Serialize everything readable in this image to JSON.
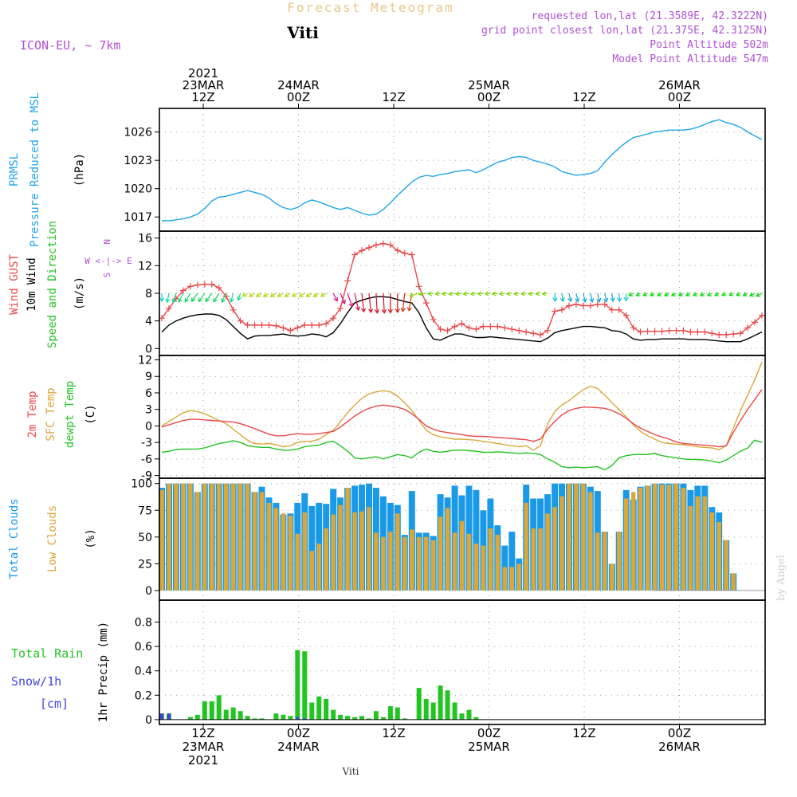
{
  "header": {
    "title": "Forecast Meteogram",
    "location": "Viti",
    "model": "ICON-EU, ~ 7km",
    "requested": "requested lon,lat (21.3589E, 42.3222N)",
    "gridpoint": "grid point closest lon,lat (21.375E, 42.3125N)",
    "point_alt": "Point Altitude 502m",
    "model_alt": "Model Point Altitude 547m",
    "credit": "by Angel",
    "footer": "Viti"
  },
  "colors": {
    "pressure": "#1fa5e6",
    "gust": "#e84848",
    "wind10m": "#000000",
    "t2m": "#e84848",
    "sfc": "#d9a73a",
    "dewpt": "#22c422",
    "total_clouds": "#1a9ae6",
    "low_clouds": "#d9a73a",
    "rain": "#22c422",
    "snow": "#4444e0",
    "meta": "#b050d0"
  },
  "time_axis": {
    "hours_from_23MAR00Z": [
      12,
      24,
      36,
      48,
      60,
      72
    ],
    "top": [
      {
        "h": 12,
        "lines": [
          "2021",
          "23MAR",
          "12Z"
        ]
      },
      {
        "h": 24,
        "lines": [
          "24MAR",
          "00Z"
        ]
      },
      {
        "h": 36,
        "lines": [
          "12Z"
        ]
      },
      {
        "h": 48,
        "lines": [
          "25MAR",
          "00Z"
        ]
      },
      {
        "h": 60,
        "lines": [
          "12Z"
        ]
      },
      {
        "h": 72,
        "lines": [
          "26MAR",
          "00Z"
        ]
      }
    ],
    "bottom": [
      {
        "h": 12,
        "lines": [
          "12Z",
          "23MAR",
          "2021"
        ]
      },
      {
        "h": 24,
        "lines": [
          "00Z",
          "24MAR"
        ]
      },
      {
        "h": 36,
        "lines": [
          "12Z"
        ]
      },
      {
        "h": 48,
        "lines": [
          "00Z",
          "25MAR"
        ]
      },
      {
        "h": 60,
        "lines": [
          "12Z"
        ]
      },
      {
        "h": 72,
        "lines": [
          "00Z",
          "26MAR"
        ]
      }
    ]
  },
  "chart_data": [
    {
      "id": "pressure",
      "type": "line",
      "ylabels": [
        "PRMSL",
        "Pressure Reduced to MSL",
        "(hPa)"
      ],
      "ylim": [
        1015.5,
        1028.5
      ],
      "yticks": [
        1017,
        1020,
        1023,
        1026
      ],
      "series": [
        {
          "key": "pressure",
          "values": [
            1016.6,
            1016.6,
            1016.7,
            1016.8,
            1017.0,
            1017.3,
            1017.9,
            1018.7,
            1019.1,
            1019.2,
            1019.4,
            1019.6,
            1019.8,
            1019.6,
            1019.4,
            1019.0,
            1018.4,
            1018.0,
            1017.8,
            1018.0,
            1018.5,
            1018.8,
            1018.6,
            1018.3,
            1018.0,
            1017.8,
            1018.0,
            1017.7,
            1017.4,
            1017.2,
            1017.3,
            1017.8,
            1018.5,
            1019.3,
            1020.0,
            1020.7,
            1021.2,
            1021.4,
            1021.3,
            1021.5,
            1021.6,
            1021.8,
            1021.9,
            1022.0,
            1021.7,
            1022.0,
            1022.4,
            1022.8,
            1023.0,
            1023.3,
            1023.4,
            1023.3,
            1023.0,
            1022.8,
            1022.6,
            1022.3,
            1021.8,
            1021.6,
            1021.4,
            1021.5,
            1021.6,
            1021.9,
            1022.8,
            1023.6,
            1024.3,
            1024.9,
            1025.4,
            1025.6,
            1025.8,
            1026.0,
            1026.1,
            1026.2,
            1026.2,
            1026.2,
            1026.3,
            1026.5,
            1026.8,
            1027.1,
            1027.3,
            1027.0,
            1026.8,
            1026.5,
            1026.0,
            1025.6,
            1025.2
          ]
        }
      ]
    },
    {
      "id": "wind",
      "type": "line",
      "ylabels": [
        "Wind GUST",
        "10m Wind",
        "Speed and Direction",
        "(m/s)"
      ],
      "ylim": [
        -1,
        17
      ],
      "yticks": [
        0,
        4,
        8,
        12,
        16
      ],
      "compass": [
        "N",
        "W <-|-> E",
        "S"
      ],
      "series": [
        {
          "key": "gust",
          "values": [
            4.4,
            5.8,
            7.2,
            8.4,
            9.0,
            9.2,
            9.3,
            9.3,
            8.8,
            7.6,
            5.6,
            4.0,
            3.4,
            3.4,
            3.4,
            3.4,
            3.3,
            3.0,
            2.6,
            3.0,
            3.4,
            3.4,
            3.4,
            3.6,
            4.4,
            5.8,
            9.8,
            13.6,
            14.2,
            14.6,
            15.0,
            15.2,
            15.0,
            14.2,
            13.8,
            13.6,
            9.0,
            6.6,
            4.2,
            2.8,
            2.6,
            3.2,
            3.6,
            3.0,
            2.8,
            3.2,
            3.2,
            3.2,
            3.0,
            2.8,
            2.6,
            2.4,
            2.2,
            2.0,
            2.6,
            5.4,
            5.6,
            6.2,
            6.4,
            6.2,
            6.2,
            6.4,
            6.4,
            5.6,
            5.6,
            4.8,
            3.0,
            2.4,
            2.5,
            2.5,
            2.5,
            2.6,
            2.6,
            2.6,
            2.4,
            2.4,
            2.4,
            2.2,
            2.0,
            2.0,
            2.1,
            2.2,
            3.0,
            3.8,
            4.8
          ]
        },
        {
          "key": "wind10m",
          "values": [
            2.4,
            3.4,
            4.0,
            4.4,
            4.7,
            4.9,
            5.0,
            5.0,
            4.8,
            4.2,
            3.2,
            2.2,
            1.4,
            1.8,
            1.9,
            1.9,
            2.0,
            2.1,
            1.9,
            1.8,
            1.9,
            2.1,
            2.0,
            1.7,
            2.3,
            3.6,
            5.2,
            6.6,
            7.0,
            7.3,
            7.5,
            7.5,
            7.4,
            7.1,
            6.8,
            6.6,
            5.2,
            3.0,
            1.4,
            1.2,
            1.7,
            2.1,
            2.1,
            1.8,
            1.6,
            1.6,
            1.7,
            1.6,
            1.5,
            1.4,
            1.3,
            1.2,
            1.1,
            1.0,
            1.5,
            2.3,
            2.6,
            2.8,
            3.0,
            3.2,
            3.2,
            3.1,
            3.0,
            2.6,
            2.5,
            2.1,
            1.4,
            1.2,
            1.3,
            1.3,
            1.4,
            1.4,
            1.4,
            1.4,
            1.3,
            1.3,
            1.3,
            1.2,
            1.1,
            1.0,
            1.0,
            1.0,
            1.4,
            1.9,
            2.4
          ]
        }
      ]
    },
    {
      "id": "temperature",
      "type": "line",
      "ylabels": [
        "2m Temp",
        "SFC Temp",
        "dewpt Temp",
        "(C)"
      ],
      "ylim": [
        -9.5,
        12.8
      ],
      "yticks": [
        -9,
        -6,
        -3,
        0,
        3,
        6,
        9,
        12
      ],
      "series": [
        {
          "key": "t2m",
          "values": [
            -0.2,
            0.2,
            0.6,
            1.0,
            1.2,
            1.2,
            1.1,
            1.0,
            0.9,
            0.8,
            0.7,
            0.4,
            0.0,
            -0.5,
            -1.0,
            -1.5,
            -1.8,
            -1.8,
            -1.6,
            -1.4,
            -1.5,
            -1.5,
            -1.4,
            -1.2,
            -1.0,
            -0.2,
            0.8,
            1.8,
            2.6,
            3.2,
            3.6,
            3.8,
            3.6,
            3.4,
            3.0,
            2.2,
            1.2,
            0.0,
            -0.6,
            -1.0,
            -1.2,
            -1.4,
            -1.6,
            -1.8,
            -1.9,
            -1.9,
            -2.0,
            -2.1,
            -2.2,
            -2.3,
            -2.4,
            -2.5,
            -2.8,
            -2.4,
            -0.6,
            0.8,
            2.0,
            2.8,
            3.2,
            3.4,
            3.4,
            3.3,
            3.2,
            2.8,
            2.2,
            1.4,
            0.4,
            -0.4,
            -1.0,
            -1.6,
            -2.0,
            -2.4,
            -2.9,
            -3.2,
            -3.3,
            -3.4,
            -3.5,
            -3.6,
            -3.8,
            -3.6,
            -1.2,
            1.0,
            3.0,
            4.8,
            6.6
          ]
        },
        {
          "key": "sfc",
          "values": [
            0.0,
            0.8,
            1.6,
            2.4,
            2.8,
            2.6,
            2.2,
            1.6,
            1.0,
            0.4,
            -0.6,
            -1.6,
            -2.6,
            -3.2,
            -3.3,
            -3.2,
            -3.4,
            -3.8,
            -3.6,
            -3.0,
            -2.8,
            -2.8,
            -2.4,
            -1.6,
            -0.8,
            0.8,
            2.4,
            3.8,
            5.0,
            5.8,
            6.2,
            6.4,
            6.2,
            5.4,
            4.2,
            2.8,
            1.0,
            -0.8,
            -1.6,
            -2.0,
            -2.2,
            -2.4,
            -2.4,
            -2.5,
            -2.6,
            -2.8,
            -3.0,
            -3.2,
            -3.4,
            -3.6,
            -3.8,
            -3.6,
            -4.4,
            -3.6,
            0.4,
            2.6,
            3.8,
            4.6,
            5.6,
            6.6,
            7.2,
            6.8,
            5.6,
            4.2,
            3.0,
            1.6,
            0.2,
            -1.0,
            -1.8,
            -2.4,
            -3.0,
            -3.2,
            -3.3,
            -3.4,
            -3.6,
            -3.8,
            -3.9,
            -4.0,
            -4.3,
            -3.6,
            -0.4,
            2.8,
            5.6,
            8.4,
            11.6
          ]
        },
        {
          "key": "dewpt",
          "values": [
            -4.8,
            -4.6,
            -4.3,
            -4.2,
            -4.2,
            -4.2,
            -4.0,
            -3.6,
            -3.2,
            -3.0,
            -2.7,
            -3.0,
            -3.6,
            -3.8,
            -3.9,
            -3.9,
            -4.2,
            -4.4,
            -4.4,
            -4.2,
            -3.8,
            -3.6,
            -3.5,
            -3.0,
            -2.8,
            -3.6,
            -4.6,
            -5.8,
            -6.0,
            -5.8,
            -5.6,
            -6.0,
            -5.6,
            -5.2,
            -5.4,
            -5.8,
            -4.8,
            -4.2,
            -4.6,
            -4.8,
            -4.6,
            -4.4,
            -4.4,
            -4.5,
            -4.6,
            -4.8,
            -4.8,
            -4.7,
            -4.8,
            -4.9,
            -5.0,
            -4.9,
            -5.0,
            -5.2,
            -6.0,
            -6.6,
            -7.4,
            -7.6,
            -7.5,
            -7.6,
            -7.5,
            -7.4,
            -8.0,
            -7.2,
            -5.8,
            -5.4,
            -5.2,
            -5.2,
            -5.2,
            -5.0,
            -5.4,
            -5.6,
            -5.8,
            -6.0,
            -6.1,
            -6.1,
            -6.2,
            -6.4,
            -6.7,
            -6.2,
            -5.4,
            -4.6,
            -4.0,
            -2.6,
            -3.0
          ]
        }
      ]
    },
    {
      "id": "clouds",
      "type": "bar",
      "ylabels": [
        "Total Clouds",
        "Low Clouds",
        "(%)"
      ],
      "ylim": [
        -9,
        105
      ],
      "yticks": [
        0,
        25,
        50,
        75,
        100
      ],
      "series": [
        {
          "key": "total_clouds",
          "values": [
            96,
            100,
            100,
            100,
            100,
            92,
            100,
            100,
            100,
            100,
            100,
            100,
            100,
            92,
            97,
            87,
            82,
            71,
            72,
            82,
            91,
            79,
            82,
            81,
            95,
            87,
            96,
            98,
            99,
            100,
            96,
            88,
            82,
            80,
            52,
            93,
            54,
            54,
            51,
            90,
            87,
            98,
            89,
            98,
            94,
            75,
            86,
            61,
            42,
            55,
            30,
            99,
            86,
            86,
            90,
            100,
            100,
            100,
            100,
            100,
            97,
            93,
            55,
            25,
            55,
            94,
            85,
            97,
            98,
            100,
            100,
            100,
            100,
            100,
            94,
            98,
            98,
            78,
            73,
            47,
            16,
            0,
            0,
            0,
            0
          ]
        },
        {
          "key": "low_clouds",
          "values": [
            94,
            100,
            100,
            100,
            100,
            92,
            100,
            100,
            100,
            100,
            100,
            100,
            100,
            92,
            92,
            82,
            77,
            72,
            70,
            53,
            73,
            37,
            44,
            58,
            71,
            80,
            96,
            73,
            74,
            78,
            54,
            50,
            55,
            72,
            50,
            57,
            50,
            50,
            47,
            69,
            77,
            54,
            65,
            53,
            44,
            42,
            58,
            52,
            22,
            22,
            25,
            82,
            58,
            58,
            72,
            78,
            88,
            100,
            100,
            100,
            92,
            54,
            55,
            25,
            55,
            86,
            92,
            96,
            98,
            100,
            99,
            99,
            100,
            96,
            79,
            88,
            88,
            73,
            64,
            47,
            16,
            0,
            0,
            0,
            0
          ]
        }
      ]
    },
    {
      "id": "precip",
      "type": "bar",
      "ylabels": [
        "Total  Rain",
        "Snow/1h",
        "[cm]",
        "1hr Precip (mm)"
      ],
      "ylim": [
        -0.04,
        0.98
      ],
      "yticks": [
        0,
        0.2,
        0.4,
        0.6,
        0.8
      ],
      "yticklabels": [
        "0",
        "0.2",
        "0.4",
        "0.6",
        "0.8"
      ],
      "series": [
        {
          "key": "rain",
          "values": [
            0.05,
            0.05,
            0,
            0,
            0.02,
            0.04,
            0.15,
            0.15,
            0.2,
            0.08,
            0.1,
            0.07,
            0.03,
            0.01,
            0.01,
            0,
            0.05,
            0.04,
            0.03,
            0.57,
            0.56,
            0.14,
            0.19,
            0.17,
            0.08,
            0.04,
            0.03,
            0.02,
            0.03,
            0.01,
            0.07,
            0.02,
            0.11,
            0.1,
            0.01,
            0,
            0.26,
            0.17,
            0.14,
            0.28,
            0.24,
            0.14,
            0.05,
            0.08,
            0.02,
            0,
            0,
            0,
            0,
            0,
            0,
            0,
            0,
            0,
            0,
            0,
            0,
            0,
            0,
            0,
            0,
            0,
            0,
            0,
            0,
            0,
            0,
            0,
            0,
            0,
            0,
            0,
            0,
            0,
            0,
            0,
            0,
            0,
            0,
            0,
            0,
            0,
            0,
            0,
            0
          ]
        },
        {
          "key": "snow",
          "values": [
            0.05,
            0.05,
            0,
            0,
            0,
            0,
            0,
            0,
            0,
            0,
            0,
            0,
            0,
            0,
            0,
            0,
            0,
            0,
            0,
            0.02,
            0.01,
            0,
            0,
            0,
            0,
            0,
            0,
            0,
            0,
            0,
            0,
            0,
            0,
            0,
            0,
            0,
            0,
            0,
            0,
            0,
            0,
            0,
            0,
            0,
            0,
            0,
            0,
            0,
            0,
            0,
            0,
            0,
            0,
            0,
            0,
            0,
            0,
            0,
            0,
            0,
            0,
            0,
            0,
            0,
            0,
            0,
            0,
            0,
            0,
            0,
            0,
            0,
            0,
            0,
            0,
            0,
            0,
            0,
            0,
            0,
            0,
            0,
            0,
            0,
            0
          ]
        }
      ]
    }
  ],
  "wind_dirs": [
    0,
    -14,
    -22,
    -32,
    -36,
    -40,
    -40,
    -40,
    -36,
    -30,
    -18,
    -22,
    250,
    250,
    250,
    250,
    250,
    250,
    250,
    250,
    250,
    250,
    250,
    250,
    140,
    145,
    150,
    160,
    170,
    170,
    175,
    175,
    180,
    180,
    190,
    195,
    260,
    265,
    265,
    265,
    265,
    265,
    265,
    265,
    265,
    265,
    265,
    265,
    265,
    265,
    265,
    265,
    265,
    265,
    265,
    5,
    10,
    15,
    15,
    15,
    15,
    15,
    15,
    10,
    5,
    0,
    300,
    300,
    300,
    300,
    300,
    300,
    300,
    300,
    300,
    300,
    300,
    300,
    300,
    300,
    300,
    300,
    300,
    300,
    300
  ]
}
